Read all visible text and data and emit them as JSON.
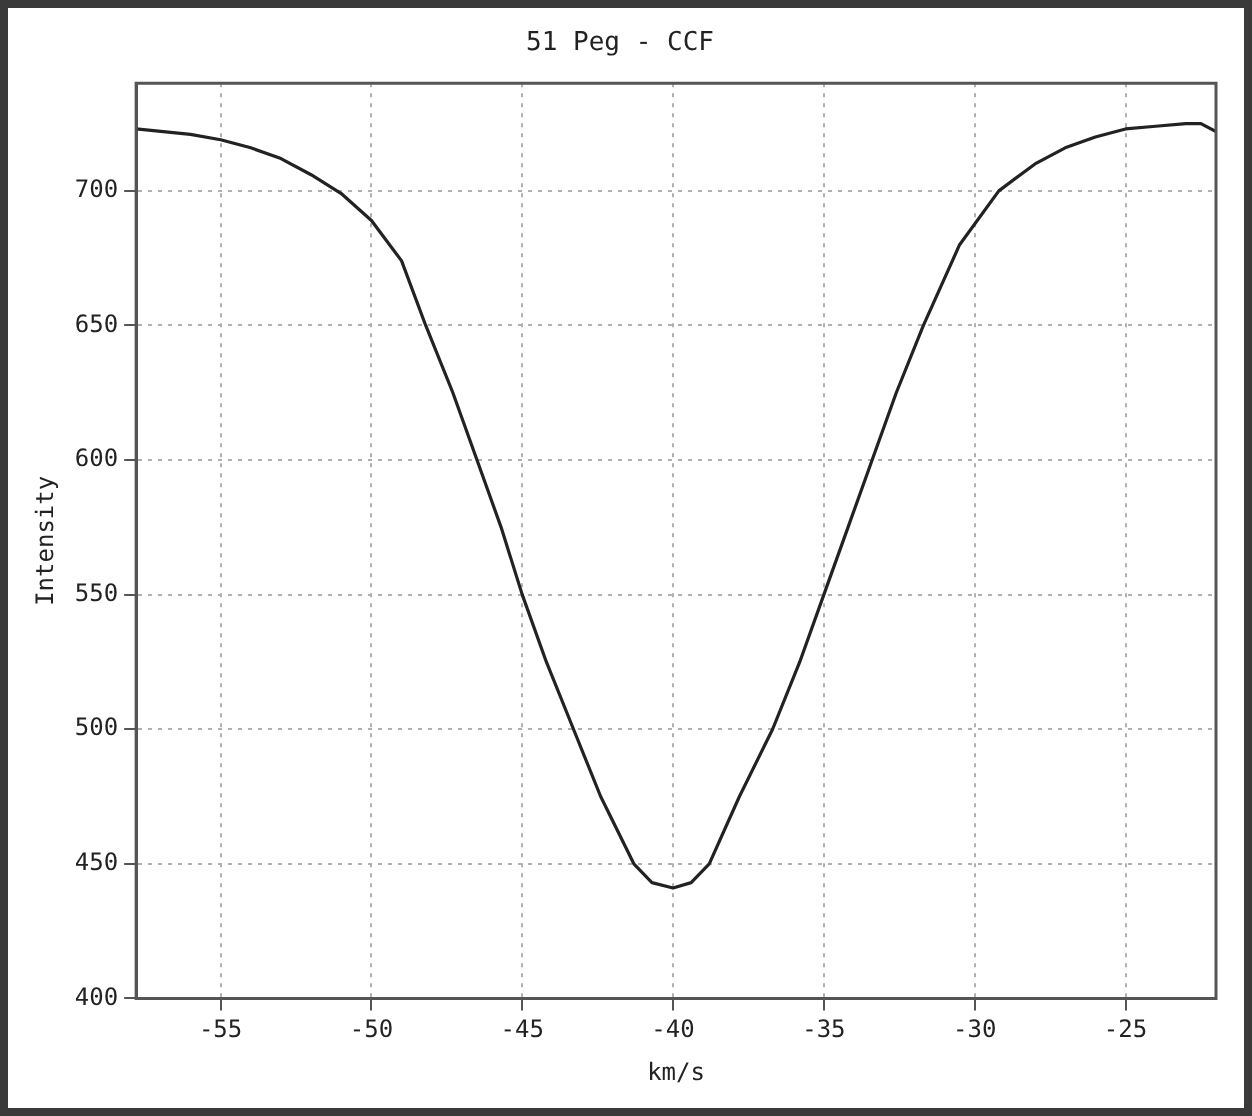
{
  "chart_data": {
    "type": "line",
    "title": "51 Peg - CCF",
    "xlabel": "km/s",
    "ylabel": "Intensity",
    "xlim": [
      -57.8,
      -22
    ],
    "ylim": [
      400,
      740
    ],
    "xticks": [
      -55,
      -50,
      -45,
      -40,
      -35,
      -30,
      -25
    ],
    "yticks": [
      400,
      450,
      500,
      550,
      600,
      650,
      700
    ],
    "grid": true,
    "legend": false,
    "marker": "none",
    "line_style": "solid",
    "series": [
      {
        "color": "#222222",
        "x": [
          -57.8,
          -56,
          -55,
          -54,
          -53,
          -52,
          -51,
          -50,
          -49,
          -48.2,
          -47.3,
          -46.5,
          -45.7,
          -45,
          -44.2,
          -43.3,
          -42.4,
          -41.3,
          -40.7,
          -40,
          -39.4,
          -38.8,
          -37.8,
          -36.7,
          -35.8,
          -35,
          -34.2,
          -33.4,
          -32.6,
          -31.7,
          -30.5,
          -29.2,
          -28,
          -27,
          -26,
          -25,
          -24,
          -23,
          -22.5,
          -22
        ],
        "values": [
          723,
          721,
          719,
          716,
          712,
          706,
          699,
          689,
          674,
          650,
          625,
          600,
          575,
          550,
          525,
          500,
          475,
          450,
          443,
          441,
          443,
          450,
          475,
          500,
          525,
          550,
          575,
          600,
          625,
          650,
          680,
          700,
          710,
          716,
          720,
          723,
          724,
          725,
          725,
          722
        ]
      }
    ]
  }
}
